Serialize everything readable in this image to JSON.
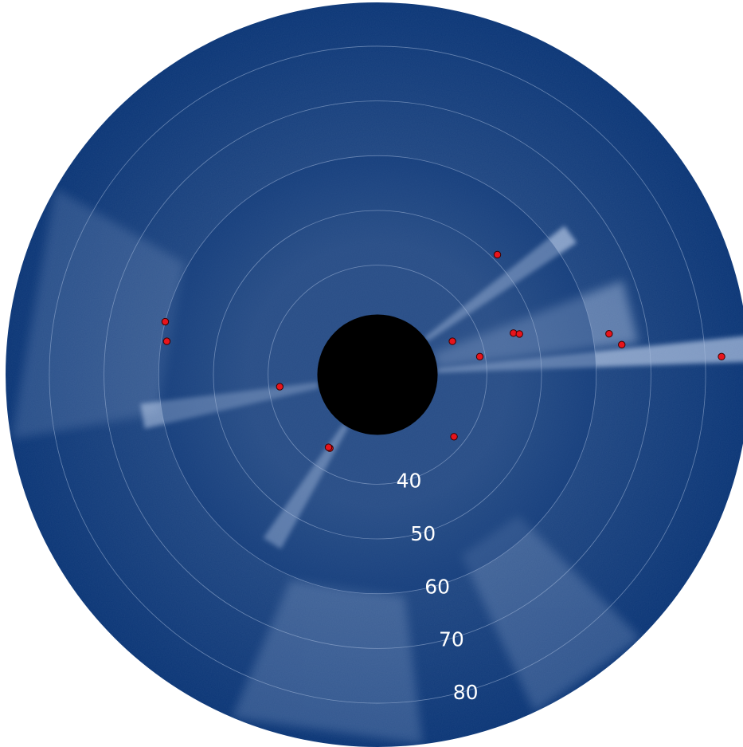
{
  "chart_data": {
    "type": "scatter",
    "title": "",
    "projection": "polar",
    "grid": true,
    "colors": {
      "background": "#0a3576",
      "occulter": "#000000",
      "streamer": "#dce9ff",
      "ring_line": "#a9bedf",
      "marker_fill": "#e8141b",
      "marker_edge": "#3a0000",
      "label": "#ffffff"
    },
    "radial_ticks": [
      "40",
      "50",
      "60",
      "70",
      "80"
    ],
    "rlim": [
      20,
      88
    ],
    "occulter_radius": 31,
    "points": [
      {
        "theta": 45,
        "r": 51
      },
      {
        "theta": 24,
        "r": 35
      },
      {
        "theta": 17,
        "r": 46
      },
      {
        "theta": 16,
        "r": 47
      },
      {
        "theta": 10,
        "r": 39
      },
      {
        "theta": 10,
        "r": 63
      },
      {
        "theta": 7,
        "r": 65
      },
      {
        "theta": 3,
        "r": 83
      },
      {
        "theta": 166,
        "r": 60
      },
      {
        "theta": 171,
        "r": 59
      },
      {
        "theta": 187,
        "r": 38
      },
      {
        "theta": 237,
        "r": 36
      },
      {
        "theta": 236,
        "r": 36
      },
      {
        "theta": 321,
        "r": 38
      }
    ]
  }
}
